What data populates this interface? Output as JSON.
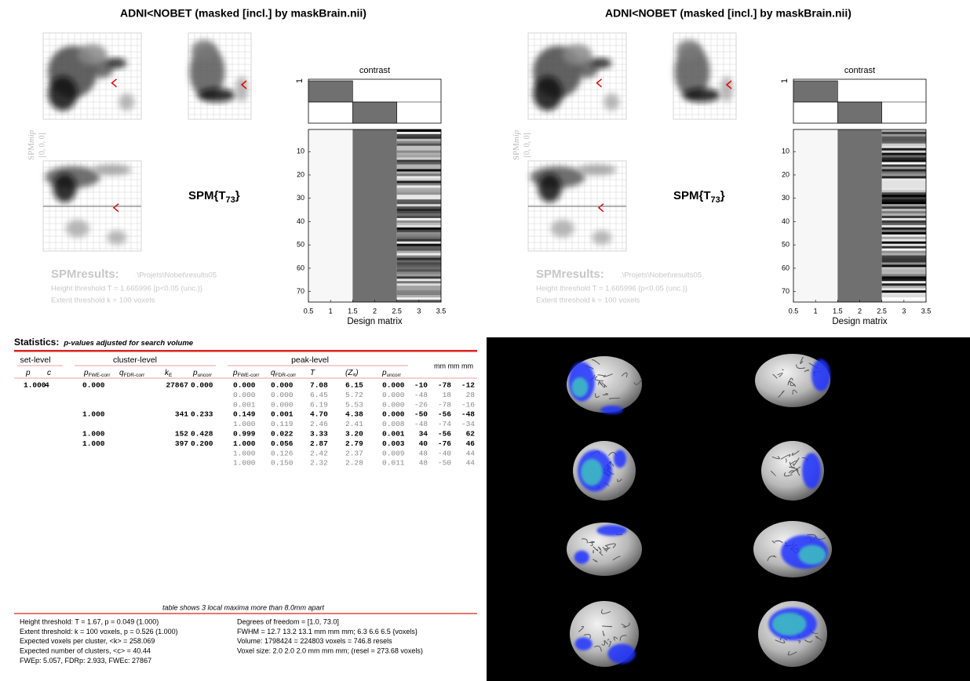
{
  "panels": [
    {
      "title": "ADNI<NOBET (masked [incl.] by maskBrain.nii)",
      "mip_label": {
        "main": "SPM",
        "italic": "mip"
      },
      "mip_coords": "[0, 0, 0]",
      "stat": {
        "main": "SPM{T",
        "sub": "73",
        "tail": "}"
      },
      "results_label": "SPMresults:",
      "results_path": ".\\Projets\\Nobet\\results05",
      "height_threshold": "Height threshold T = 1.665996  {p<0.05 (unc.)}",
      "extent_threshold": "Extent threshold k = 100 voxels",
      "contrast": {
        "title": "contrast",
        "ytick": "1",
        "weights": [
          1,
          -1,
          0
        ]
      },
      "design_matrix": {
        "xlabel": "Design matrix",
        "xlim": [
          0.5,
          3.5
        ],
        "xticks": [
          0.5,
          1,
          1.5,
          2,
          2.5,
          3,
          3.5
        ],
        "ylim": [
          0.5,
          74.5
        ],
        "yticks": [
          10,
          20,
          30,
          40,
          50,
          60,
          70
        ]
      }
    },
    {
      "title": "ADNI<NOBET (masked [incl.] by maskBrain.nii)",
      "mip_label": {
        "main": "SPM",
        "italic": "mip"
      },
      "mip_coords": "[0, 0, 0]",
      "stat": {
        "main": "SPM{T",
        "sub": "73",
        "tail": "}"
      },
      "results_label": "SPMresults:",
      "results_path": ".\\Projets\\Nobet\\results05",
      "height_threshold": "Height threshold T = 1.665996  {p<0.05 (unc.)}",
      "extent_threshold": "Extent threshold k = 100 voxels",
      "contrast": {
        "title": "contrast",
        "ytick": "1",
        "weights": [
          1,
          -1,
          0
        ]
      },
      "design_matrix": {
        "xlabel": "Design matrix",
        "xlim": [
          0.5,
          3.5
        ],
        "xticks": [
          0.5,
          1,
          1.5,
          2,
          2.5,
          3,
          3.5
        ],
        "ylim": [
          0.5,
          74.5
        ],
        "yticks": [
          10,
          20,
          30,
          40,
          50,
          60,
          70
        ]
      }
    }
  ],
  "statistics": {
    "title": "Statistics:",
    "subtitle": "p-values adjusted for search volume",
    "groups": [
      "set-level",
      "cluster-level",
      "peak-level",
      "mm mm mm"
    ],
    "columns": [
      {
        "main": "p"
      },
      {
        "main": "c"
      },
      {
        "main": "p",
        "sub": "FWE-corr"
      },
      {
        "main": "q",
        "sub": "FDR-corr"
      },
      {
        "main": "k",
        "sub": "E"
      },
      {
        "main": "p",
        "sub": "uncorr"
      },
      {
        "main": "p",
        "sub": "FWE-corr"
      },
      {
        "main": "q",
        "sub": "FDR-corr"
      },
      {
        "main": "T"
      },
      {
        "main": "(Z",
        "sub": "≡",
        "tail": ")"
      },
      {
        "main": "p",
        "sub": "uncorr"
      }
    ],
    "rows": [
      {
        "bold": true,
        "cells": [
          "1.000",
          "4",
          "0.000",
          null,
          "27867",
          "0.000",
          "0.000",
          "0.000",
          "7.08",
          "6.15",
          "0.000",
          "-10",
          "-78",
          "-12"
        ]
      },
      {
        "bold": false,
        "cells": [
          null,
          null,
          null,
          null,
          null,
          null,
          "0.000",
          "0.000",
          "6.45",
          "5.72",
          "0.000",
          "-48",
          "18",
          "28"
        ]
      },
      {
        "bold": false,
        "cells": [
          null,
          null,
          null,
          null,
          null,
          null,
          "0.001",
          "0.000",
          "6.19",
          "5.53",
          "0.000",
          "-26",
          "-78",
          "-16"
        ]
      },
      {
        "bold": true,
        "cells": [
          null,
          null,
          "1.000",
          null,
          "341",
          "0.233",
          "0.149",
          "0.001",
          "4.70",
          "4.38",
          "0.000",
          "-50",
          "-56",
          "-48"
        ]
      },
      {
        "bold": false,
        "cells": [
          null,
          null,
          null,
          null,
          null,
          null,
          "1.000",
          "0.119",
          "2.46",
          "2.41",
          "0.008",
          "-48",
          "-74",
          "-34"
        ]
      },
      {
        "bold": true,
        "cells": [
          null,
          null,
          "1.000",
          null,
          "152",
          "0.428",
          "0.999",
          "0.022",
          "3.33",
          "3.20",
          "0.001",
          "34",
          "-56",
          "62"
        ]
      },
      {
        "bold": true,
        "cells": [
          null,
          null,
          "1.000",
          null,
          "397",
          "0.200",
          "1.000",
          "0.056",
          "2.87",
          "2.79",
          "0.003",
          "40",
          "-76",
          "46"
        ]
      },
      {
        "bold": false,
        "cells": [
          null,
          null,
          null,
          null,
          null,
          null,
          "1.000",
          "0.126",
          "2.42",
          "2.37",
          "0.009",
          "48",
          "-40",
          "44"
        ]
      },
      {
        "bold": false,
        "cells": [
          null,
          null,
          null,
          null,
          null,
          null,
          "1.000",
          "0.150",
          "2.32",
          "2.28",
          "0.011",
          "48",
          "-50",
          "44"
        ]
      }
    ],
    "note": "table shows 3 local maxima more than 8.0mm apart",
    "footer_left": [
      "Height threshold: T = 1.67, p = 0.049 (1.000)",
      "Extent threshold: k = 100 voxels, p = 0.526 (1.000)",
      "Expected voxels per cluster, <k> = 258.069",
      "Expected number of clusters, <c> = 40.44",
      "FWEp: 5.057, FDRp: 2.933, FWEc: 27867"
    ],
    "footer_right": [
      "Degrees of freedom = [1.0, 73.0]",
      "FWHM = 12.7 13.2 13.1 mm mm mm; 6.3 6.6 6.5 {voxels}",
      "Volume: 1798424 = 224803 voxels = 746.8 resels",
      "Voxel size: 2.0 2.0 2.0 mm mm mm; (resel = 273.68 voxels)"
    ]
  }
}
